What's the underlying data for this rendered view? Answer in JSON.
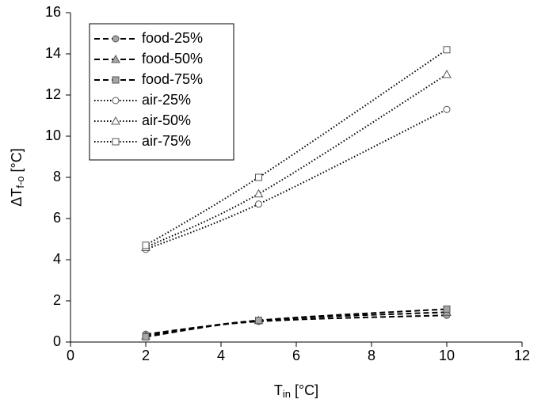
{
  "chart_data": {
    "type": "line",
    "xlabel": {
      "main": "T",
      "sub": "in",
      "unit": " [°C]"
    },
    "ylabel": {
      "main": "ΔT",
      "sub": "f-o",
      "unit": " [°C]"
    },
    "xlim": [
      0,
      12
    ],
    "xticks": [
      0,
      2,
      4,
      6,
      8,
      10,
      12
    ],
    "ylim": [
      0,
      16
    ],
    "yticks": [
      0,
      2,
      4,
      6,
      8,
      10,
      12,
      14,
      16
    ],
    "legend": "upper-left",
    "x": [
      2,
      5,
      10
    ],
    "series": [
      {
        "name": "food-25%",
        "color": "#000000",
        "style": "dashed",
        "marker": "circle",
        "marker_fill": "#a6a6a6",
        "values": [
          0.38,
          1.0,
          1.3
        ]
      },
      {
        "name": "food-50%",
        "color": "#000000",
        "style": "dashed",
        "marker": "triangle",
        "marker_fill": "#a6a6a6",
        "values": [
          0.3,
          1.05,
          1.45
        ]
      },
      {
        "name": "food-75%",
        "color": "#000000",
        "style": "dashed",
        "marker": "square",
        "marker_fill": "#a6a6a6",
        "values": [
          0.25,
          1.05,
          1.6
        ]
      },
      {
        "name": "air-25%",
        "color": "#000000",
        "style": "dotted",
        "marker": "circle",
        "marker_fill": "#ffffff",
        "values": [
          4.5,
          6.7,
          11.3
        ]
      },
      {
        "name": "air-50%",
        "color": "#000000",
        "style": "dotted",
        "marker": "triangle",
        "marker_fill": "#ffffff",
        "values": [
          4.6,
          7.2,
          13.0
        ]
      },
      {
        "name": "air-75%",
        "color": "#000000",
        "style": "dotted",
        "marker": "square",
        "marker_fill": "#ffffff",
        "values": [
          4.7,
          8.0,
          14.2
        ]
      }
    ]
  }
}
